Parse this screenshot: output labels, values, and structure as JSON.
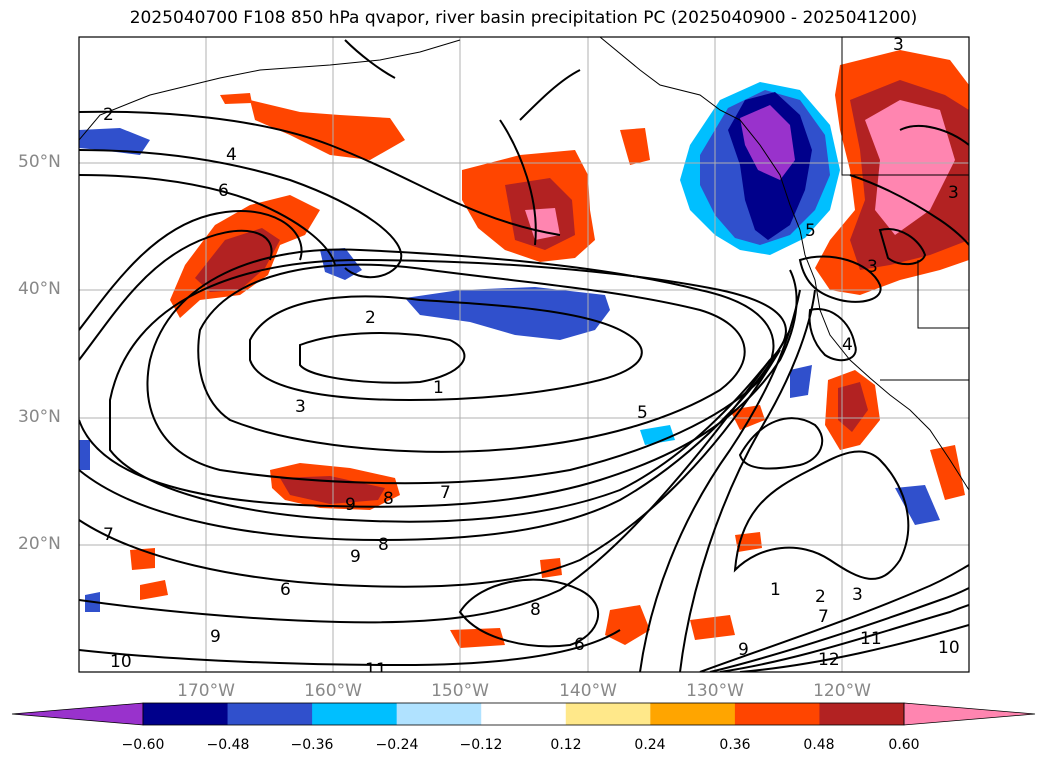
{
  "title": "2025040700 F108 850 hPa qvapor, river basin precipitation PC (2025040900 - 2025041200)",
  "map": {
    "lat_labels": [
      "50°N",
      "40°N",
      "30°N",
      "20°N"
    ],
    "lon_labels": [
      "170°W",
      "160°W",
      "150°W",
      "140°W",
      "130°W",
      "120°W"
    ],
    "contour_labels": [
      "2",
      "4",
      "6",
      "2",
      "1",
      "3",
      "5",
      "7",
      "8",
      "9",
      "8",
      "9",
      "7",
      "6",
      "8",
      "6",
      "9",
      "10",
      "11",
      "1",
      "2",
      "3",
      "7",
      "9",
      "11",
      "12",
      "10",
      "3",
      "3",
      "3",
      "4",
      "5"
    ]
  },
  "colorbar": {
    "colors": [
      "#9932cc",
      "#00008b",
      "#3050cc",
      "#00bfff",
      "#b0e2ff",
      "#ffffff",
      "#ffe88a",
      "#ffa500",
      "#ff4500",
      "#b22222",
      "#ff85b0"
    ],
    "tick_labels": [
      "−0.60",
      "−0.48",
      "−0.36",
      "−0.24",
      "−0.12",
      "0.12",
      "0.24",
      "0.36",
      "0.48",
      "0.60"
    ]
  }
}
